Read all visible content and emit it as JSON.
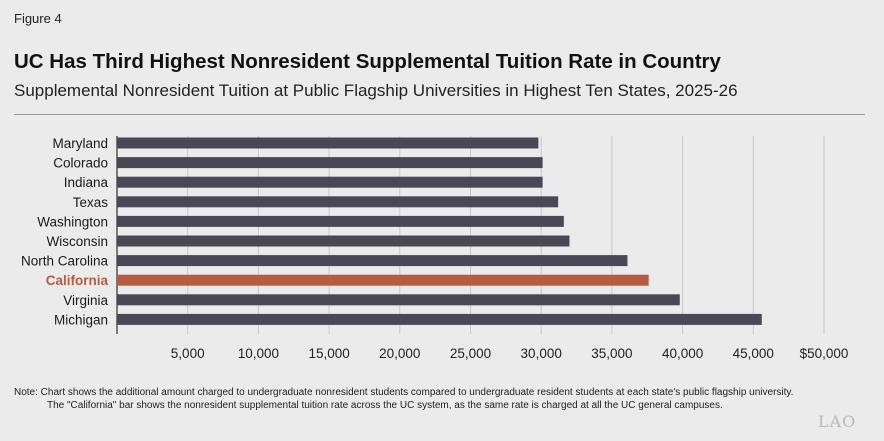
{
  "figure_label": "Figure 4",
  "title": "UC Has Third Highest Nonresident Supplemental Tuition Rate in Country",
  "subtitle": "Supplemental Nonresident Tuition at Public Flagship Universities in Highest Ten States, 2025-26",
  "note_line1": "Note: Chart shows the additional amount charged to undergraduate nonresident students compared to undergraduate resident students at each state's public flagship university.",
  "note_line2": "The \"California\" bar shows the nonresident supplemental tuition rate across the UC system, as the same rate is charged at all the UC general campuses.",
  "logo_text": "LAO",
  "colors": {
    "bar": "#4a4857",
    "highlight": "#b85c40",
    "gridline": "#c9c9c9",
    "axis": "#555555"
  },
  "chart_data": {
    "type": "bar",
    "orientation": "horizontal",
    "title": "Supplemental Nonresident Tuition at Public Flagship Universities in Highest Ten States, 2025-26",
    "categories": [
      "Maryland",
      "Colorado",
      "Indiana",
      "Texas",
      "Washington",
      "Wisconsin",
      "North Carolina",
      "California",
      "Virginia",
      "Michigan"
    ],
    "values": [
      29800,
      30100,
      30100,
      31200,
      31600,
      32000,
      36100,
      37600,
      39800,
      45600
    ],
    "highlight": "California",
    "xlim": [
      0,
      50000
    ],
    "xticks": [
      5000,
      10000,
      15000,
      20000,
      25000,
      30000,
      35000,
      40000,
      45000,
      50000
    ],
    "xtick_labels": [
      "5,000",
      "10,000",
      "15,000",
      "20,000",
      "25,000",
      "30,000",
      "35,000",
      "40,000",
      "45,000",
      "$50,000"
    ],
    "grid": true,
    "legend": "none"
  }
}
